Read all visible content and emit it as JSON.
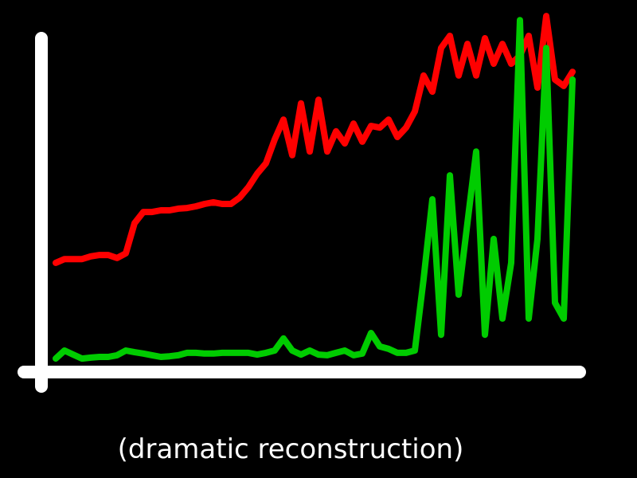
{
  "chart_data": {
    "type": "line",
    "annotations": [
      "(dramatic reconstruction)"
    ],
    "categories": [
      null,
      null,
      null,
      null,
      null,
      null,
      null,
      null,
      null,
      null,
      null,
      null,
      null,
      null,
      null,
      null,
      null,
      null,
      null,
      null,
      null,
      null,
      null,
      null,
      null,
      null,
      null,
      null,
      null,
      null,
      null,
      null,
      null,
      null,
      null,
      null,
      null,
      null,
      null,
      null,
      null,
      null,
      null,
      null,
      null,
      null,
      null,
      null,
      null,
      null,
      null,
      null,
      null,
      null,
      null,
      null,
      null,
      null,
      null,
      null
    ],
    "ylim": [
      0,
      100
    ],
    "series": [
      {
        "color": "#ff0000",
        "values": [
          32.5,
          33.6,
          33.6,
          33.6,
          34.4,
          34.8,
          34.8,
          33.9,
          35.3,
          44.3,
          47.6,
          47.6,
          48.1,
          48.1,
          48.6,
          48.8,
          49.3,
          50.0,
          50.5,
          50.0,
          50.0,
          51.9,
          55.0,
          59.0,
          62.1,
          69.2,
          75.1,
          64.5,
          79.9,
          65.6,
          81.0,
          65.6,
          71.6,
          68.0,
          73.9,
          68.5,
          73.2,
          72.7,
          75.1,
          69.9,
          72.7,
          77.5,
          88.2,
          83.4,
          96.4,
          100,
          88.2,
          97.6,
          88.2,
          99.3,
          91.7,
          97.6,
          91.7,
          94.1,
          100,
          84.6,
          105.9,
          87.0,
          85.1,
          89.3
        ]
      },
      {
        "color": "#00cc00",
        "values": [
          4.0,
          6.4,
          5.2,
          4.0,
          4.3,
          4.5,
          4.5,
          5.0,
          6.4,
          5.9,
          5.5,
          5.0,
          4.5,
          4.7,
          5.0,
          5.7,
          5.7,
          5.5,
          5.5,
          5.7,
          5.7,
          5.7,
          5.7,
          5.2,
          5.7,
          6.4,
          10.0,
          6.4,
          5.2,
          6.4,
          5.2,
          5.0,
          5.7,
          6.4,
          5.0,
          5.5,
          11.6,
          7.6,
          6.9,
          5.7,
          5.7,
          6.4,
          27.7,
          51.4,
          11.1,
          58.5,
          23.0,
          44.3,
          65.6,
          11.1,
          39.6,
          15.9,
          32.5,
          104.7,
          15.9,
          39.6,
          96.4,
          20.6,
          15.9,
          87.0
        ]
      }
    ]
  }
}
